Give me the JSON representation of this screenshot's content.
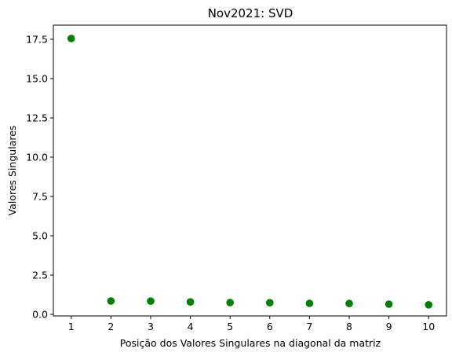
{
  "chart_data": {
    "type": "scatter",
    "title": "Nov2021: SVD",
    "xlabel": "Posição dos Valores Singulares na diagonal da matriz",
    "ylabel": "Valores Singulares",
    "x": [
      1,
      2,
      3,
      4,
      5,
      6,
      7,
      8,
      9,
      10
    ],
    "y": [
      17.55,
      0.85,
      0.84,
      0.79,
      0.75,
      0.74,
      0.7,
      0.69,
      0.65,
      0.61
    ],
    "xlim": [
      0.55,
      10.45
    ],
    "ylim": [
      -0.1,
      18.4
    ],
    "xticks": [
      1,
      2,
      3,
      4,
      5,
      6,
      7,
      8,
      9,
      10
    ],
    "xtick_labels": [
      "1",
      "2",
      "3",
      "4",
      "5",
      "6",
      "7",
      "8",
      "9",
      "10"
    ],
    "yticks": [
      0.0,
      2.5,
      5.0,
      7.5,
      10.0,
      12.5,
      15.0,
      17.5
    ],
    "ytick_labels": [
      "0.0",
      "2.5",
      "5.0",
      "7.5",
      "10.0",
      "12.5",
      "15.0",
      "17.5"
    ],
    "marker_color": "#008000",
    "grid": false
  }
}
